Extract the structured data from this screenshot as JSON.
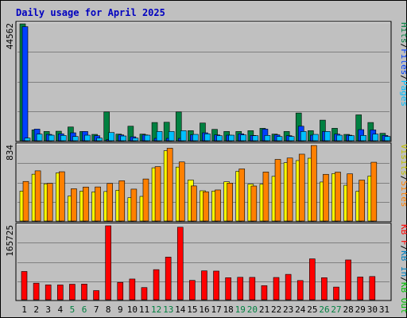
{
  "title": "Daily usage for April 2025",
  "colors": {
    "background": "#c0c0c0",
    "frame": "#ffffff",
    "title": "#0000c0",
    "hits": "#008040",
    "files": "#0040ff",
    "pages": "#00c0ff",
    "visits": "#ffff00",
    "sites": "#ff8000",
    "kb_in": "#0080c0",
    "kb_out": "#00c000",
    "kb_f": "#ff0000",
    "weekend": "#008040",
    "weekday": "#000000"
  },
  "panels": {
    "top": {
      "max_label": "44562",
      "legend": [
        {
          "text": "Hits",
          "color": "#008040"
        },
        {
          "text": "/",
          "color": "#000000"
        },
        {
          "text": "Files",
          "color": "#0040ff"
        },
        {
          "text": "/",
          "color": "#000000"
        },
        {
          "text": "Pages",
          "color": "#00c0ff"
        }
      ]
    },
    "middle": {
      "max_label": "834",
      "legend": [
        {
          "text": "Visits",
          "color": "#c0c000"
        },
        {
          "text": "/",
          "color": "#000000"
        },
        {
          "text": "Sites",
          "color": "#ff8000"
        }
      ]
    },
    "bottom": {
      "max_label": "165725",
      "legend": [
        {
          "text": "KB F",
          "color": "#ff0000"
        },
        {
          "text": "/",
          "color": "#000000"
        },
        {
          "text": "KB In",
          "color": "#0080c0"
        },
        {
          "text": "/",
          "color": "#000000"
        },
        {
          "text": "KB Out",
          "color": "#00c000"
        }
      ]
    }
  },
  "chart_data": {
    "type": "bar",
    "title": "Daily usage for April 2025",
    "categories": [
      "1",
      "2",
      "3",
      "4",
      "5",
      "6",
      "7",
      "8",
      "9",
      "10",
      "11",
      "12",
      "13",
      "14",
      "15",
      "16",
      "17",
      "18",
      "19",
      "20",
      "21",
      "22",
      "23",
      "24",
      "25",
      "26",
      "27",
      "28",
      "29",
      "30",
      "31"
    ],
    "weekend_days": [
      "5",
      "6",
      "12",
      "13",
      "19",
      "20",
      "26",
      "27"
    ],
    "ylim": {
      "hits": [
        0,
        44562
      ],
      "visits_sites": [
        0,
        834
      ],
      "kbytes": [
        0,
        165725
      ]
    },
    "series": [
      {
        "name": "Hits",
        "panel": "top",
        "values": [
          44562,
          4400,
          3800,
          3900,
          5500,
          3800,
          2700,
          11200,
          2800,
          5800,
          2800,
          7200,
          7300,
          11200,
          4100,
          7000,
          4600,
          3800,
          3800,
          4100,
          5000,
          2800,
          3800,
          10800,
          4100,
          8100,
          5000,
          2700,
          10100,
          7200,
          3100
        ]
      },
      {
        "name": "Files",
        "panel": "top",
        "values": [
          43500,
          4700,
          2700,
          2900,
          3300,
          3800,
          2200,
          700,
          2500,
          1800,
          2500,
          1200,
          1200,
          1200,
          2500,
          3300,
          2500,
          2400,
          2900,
          2300,
          4700,
          2500,
          2200,
          5800,
          2400,
          3800,
          2800,
          2400,
          4500,
          4400,
          2300
        ]
      },
      {
        "name": "Pages",
        "panel": "top",
        "values": [
          1300,
          2800,
          2400,
          2300,
          1900,
          2400,
          1300,
          3400,
          2100,
          1300,
          2400,
          3800,
          3800,
          4100,
          2700,
          2900,
          2200,
          2400,
          2500,
          2200,
          2300,
          1900,
          1900,
          3800,
          2700,
          3800,
          2400,
          2200,
          2300,
          2800,
          1900
        ]
      },
      {
        "name": "Visits",
        "panel": "middle",
        "values": [
          336,
          520,
          415,
          534,
          281,
          335,
          327,
          331,
          345,
          264,
          278,
          590,
          777,
          598,
          457,
          339,
          336,
          437,
          552,
          412,
          411,
          497,
          646,
          669,
          695,
          435,
          527,
          399,
          334,
          500,
          0
        ]
      },
      {
        "name": "Sites",
        "panel": "middle",
        "values": [
          441,
          557,
          420,
          547,
          361,
          380,
          381,
          419,
          449,
          357,
          468,
          603,
          804,
          654,
          392,
          328,
          348,
          423,
          578,
          391,
          544,
          682,
          697,
          739,
          834,
          519,
          543,
          524,
          456,
          651,
          0
        ]
      },
      {
        "name": "KB F",
        "panel": "bottom",
        "values": [
          64400,
          38500,
          34700,
          34500,
          36100,
          36400,
          22000,
          165725,
          40200,
          47700,
          28700,
          68500,
          96300,
          162600,
          44600,
          65800,
          65300,
          50600,
          51500,
          51300,
          33000,
          51100,
          58000,
          44300,
          92400,
          50600,
          29800,
          90000,
          52100,
          53200,
          0
        ]
      }
    ]
  }
}
